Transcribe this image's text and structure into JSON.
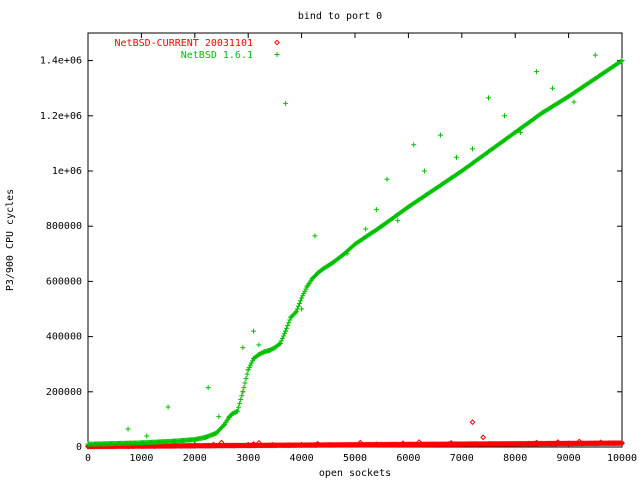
{
  "chart_data": {
    "type": "scatter",
    "title": "bind to port 0",
    "xlabel": "open sockets",
    "ylabel": "P3/900 CPU cycles",
    "xlim": [
      0,
      10000
    ],
    "ylim": [
      0,
      1500000
    ],
    "x_ticks": [
      0,
      1000,
      2000,
      3000,
      4000,
      5000,
      6000,
      7000,
      8000,
      9000,
      10000
    ],
    "x_tick_labels": [
      "0",
      "1000",
      "2000",
      "3000",
      "4000",
      "5000",
      "6000",
      "7000",
      "8000",
      "9000",
      "10000"
    ],
    "y_ticks": [
      0,
      200000,
      400000,
      600000,
      800000,
      1000000,
      1200000,
      1400000
    ],
    "y_tick_labels": [
      "0",
      "200000",
      "400000",
      "600000",
      "800000",
      "1e+06",
      "1.2e+06",
      "1.4e+06"
    ],
    "grid": false,
    "legend_position": "top-left",
    "series": [
      {
        "name": "NetBSD-CURRENT 20031101",
        "color": "#ff0000",
        "marker": "diamond",
        "x": [
          0,
          250,
          500,
          750,
          1000,
          1250,
          1500,
          1750,
          2000,
          2250,
          2500,
          2750,
          3000,
          3250,
          3500,
          3750,
          4000,
          4250,
          4500,
          4750,
          5000,
          5250,
          5500,
          5750,
          6000,
          6250,
          6500,
          6750,
          7000,
          7250,
          7500,
          7750,
          8000,
          8250,
          8500,
          8750,
          9000,
          9250,
          9500,
          9750,
          10000
        ],
        "y": [
          2000,
          2300,
          2600,
          2900,
          3200,
          3500,
          3800,
          4100,
          4400,
          4700,
          5000,
          5300,
          5600,
          5900,
          6200,
          6500,
          6800,
          7100,
          7400,
          7700,
          8000,
          8300,
          8600,
          8900,
          9200,
          9500,
          9800,
          10100,
          10400,
          10700,
          11000,
          11300,
          11600,
          11900,
          12200,
          12500,
          12800,
          13100,
          13400,
          13700,
          14000
        ],
        "outliers_x": [
          2350,
          2500,
          3100,
          3200,
          3450,
          4300,
          5100,
          5400,
          5900,
          6200,
          6800,
          7200,
          7400,
          8400,
          8800,
          9200,
          9600
        ],
        "outliers_y": [
          9000,
          16000,
          11000,
          15000,
          8000,
          12000,
          16000,
          10000,
          14000,
          18000,
          15000,
          90000,
          35000,
          16000,
          18000,
          20000,
          17000
        ]
      },
      {
        "name": "NetBSD 1.6.1",
        "color": "#00c000",
        "marker": "plus",
        "x": [
          0,
          200,
          400,
          600,
          800,
          1000,
          1200,
          1400,
          1600,
          1800,
          2000,
          2200,
          2400,
          2550,
          2650,
          2700,
          2800,
          2900,
          3000,
          3100,
          3200,
          3300,
          3400,
          3500,
          3600,
          3700,
          3800,
          3900,
          4000,
          4100,
          4200,
          4300,
          4400,
          4600,
          4800,
          5000,
          5500,
          6000,
          6500,
          7000,
          7500,
          8000,
          8500,
          9000,
          9500,
          10000
        ],
        "y": [
          10000,
          11000,
          12000,
          13000,
          14000,
          15000,
          17000,
          19000,
          21000,
          24000,
          27000,
          35000,
          50000,
          80000,
          110000,
          120000,
          130000,
          200000,
          280000,
          320000,
          335000,
          345000,
          350000,
          360000,
          375000,
          420000,
          470000,
          490000,
          540000,
          580000,
          610000,
          630000,
          645000,
          670000,
          700000,
          735000,
          800000,
          870000,
          935000,
          1000000,
          1070000,
          1140000,
          1210000,
          1270000,
          1335000,
          1400000
        ],
        "outliers_x": [
          750,
          1100,
          1500,
          2250,
          2450,
          2900,
          3100,
          3200,
          3700,
          4000,
          4250,
          4850,
          5200,
          5400,
          5600,
          5800,
          6100,
          6300,
          6600,
          6900,
          7200,
          7500,
          7800,
          8100,
          8400,
          8700,
          9100,
          9500
        ],
        "outliers_y": [
          65000,
          40000,
          145000,
          215000,
          110000,
          360000,
          420000,
          370000,
          1245000,
          500000,
          765000,
          700000,
          790000,
          860000,
          970000,
          820000,
          1095000,
          1000000,
          1130000,
          1050000,
          1080000,
          1265000,
          1200000,
          1140000,
          1360000,
          1300000,
          1250000,
          1420000
        ]
      }
    ]
  }
}
